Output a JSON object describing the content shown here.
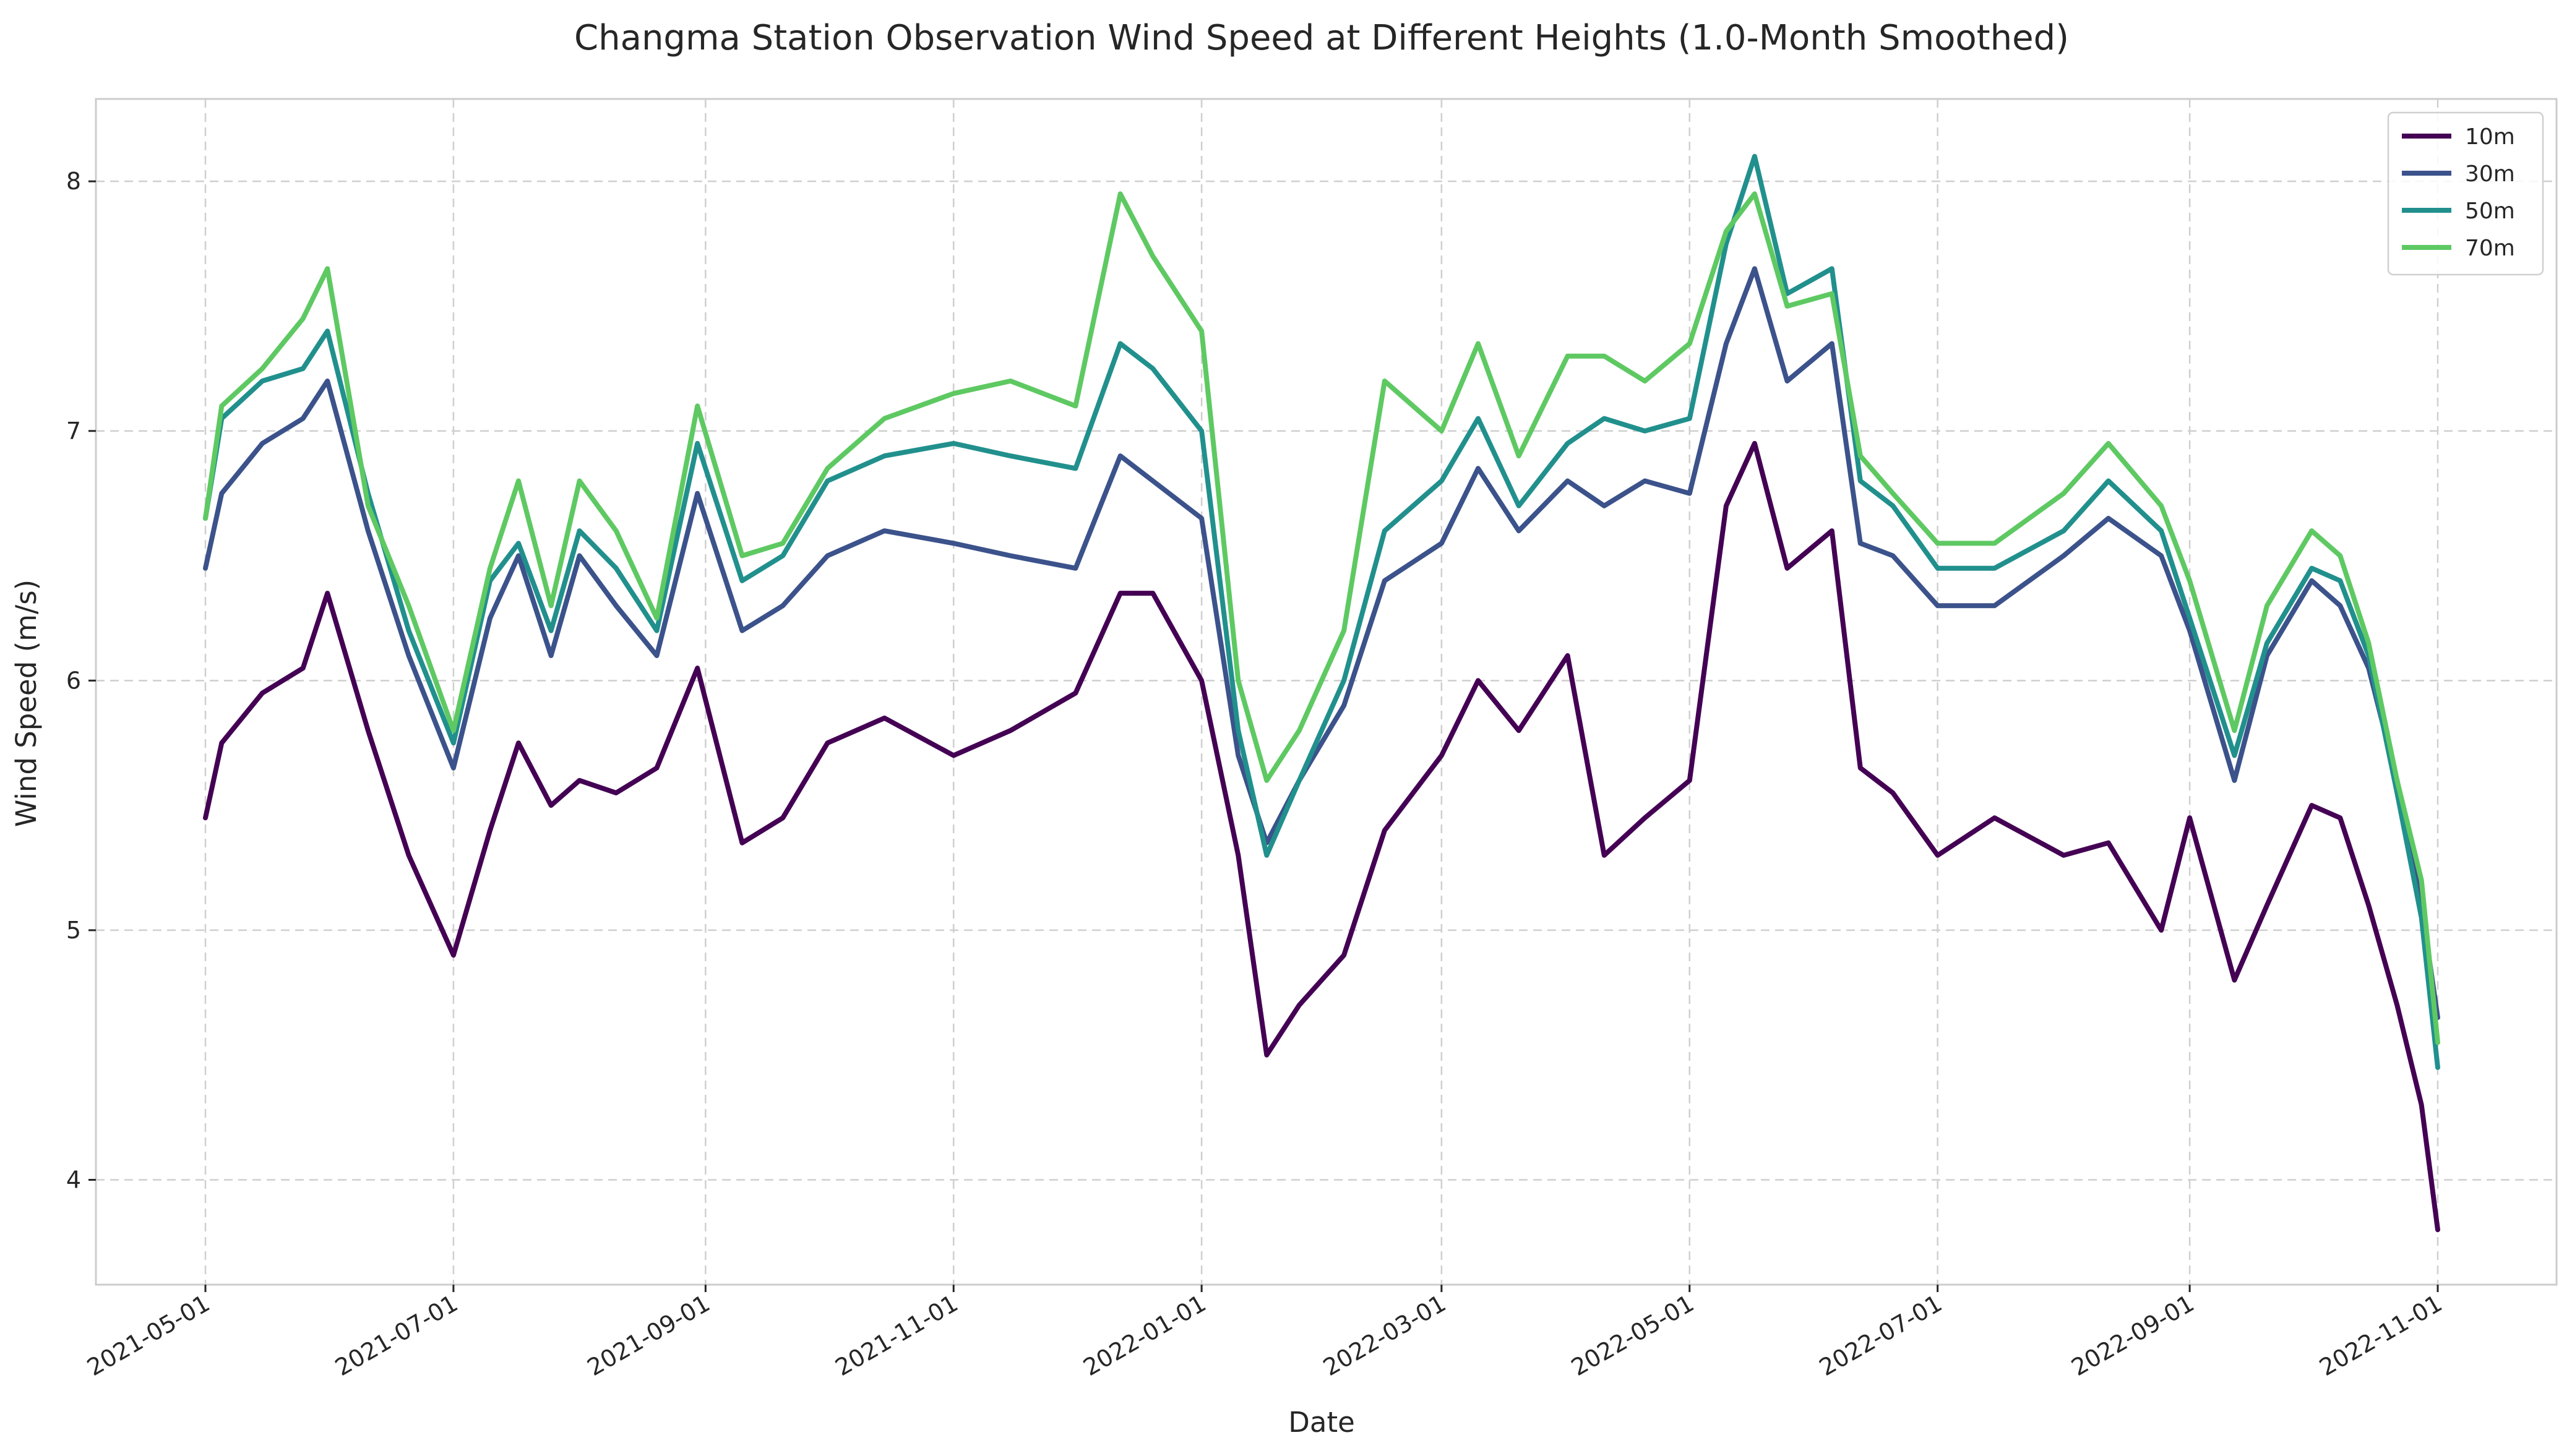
{
  "chart_data": {
    "type": "line",
    "title": "Changma Station Observation Wind Speed at Different Heights (1.0-Month Smoothed)",
    "xlabel": "Date",
    "ylabel": "Wind Speed (m/s)",
    "xlim": [
      "2021-05-01",
      "2022-11-01"
    ],
    "ylim": [
      3.58,
      8.33
    ],
    "y_ticks": [
      4,
      5,
      6,
      7,
      8
    ],
    "x_ticks": [
      "2021-05-01",
      "2021-07-01",
      "2021-09-01",
      "2021-11-01",
      "2022-01-01",
      "2022-03-01",
      "2022-05-01",
      "2022-07-01",
      "2022-09-01",
      "2022-11-01"
    ],
    "grid": true,
    "legend_position": "top-right",
    "x": [
      "2021-05-01",
      "2021-05-05",
      "2021-05-15",
      "2021-05-25",
      "2021-05-31",
      "2021-06-10",
      "2021-06-20",
      "2021-07-01",
      "2021-07-10",
      "2021-07-17",
      "2021-07-25",
      "2021-08-01",
      "2021-08-10",
      "2021-08-20",
      "2021-08-30",
      "2021-09-10",
      "2021-09-20",
      "2021-10-01",
      "2021-10-15",
      "2021-11-01",
      "2021-11-15",
      "2021-12-01",
      "2021-12-12",
      "2021-12-20",
      "2022-01-01",
      "2022-01-10",
      "2022-01-17",
      "2022-01-25",
      "2022-02-05",
      "2022-02-15",
      "2022-03-01",
      "2022-03-10",
      "2022-03-20",
      "2022-04-01",
      "2022-04-10",
      "2022-04-20",
      "2022-05-01",
      "2022-05-10",
      "2022-05-17",
      "2022-05-25",
      "2022-06-05",
      "2022-06-12",
      "2022-06-20",
      "2022-07-01",
      "2022-07-15",
      "2022-08-01",
      "2022-08-12",
      "2022-08-25",
      "2022-09-01",
      "2022-09-12",
      "2022-09-20",
      "2022-10-01",
      "2022-10-08",
      "2022-10-15",
      "2022-10-22",
      "2022-10-28",
      "2022-11-01"
    ],
    "series": [
      {
        "name": "10m",
        "color": "#440154",
        "values": [
          5.45,
          5.75,
          5.95,
          6.05,
          6.35,
          5.8,
          5.3,
          4.9,
          5.4,
          5.75,
          5.5,
          5.6,
          5.55,
          5.65,
          6.05,
          5.35,
          5.45,
          5.75,
          5.85,
          5.7,
          5.8,
          5.95,
          6.35,
          6.35,
          6.0,
          5.3,
          4.5,
          4.7,
          4.9,
          5.4,
          5.7,
          6.0,
          5.8,
          6.1,
          5.3,
          5.45,
          5.6,
          6.7,
          6.95,
          6.45,
          6.6,
          5.65,
          5.55,
          5.3,
          5.45,
          5.3,
          5.35,
          5.0,
          5.45,
          4.8,
          5.1,
          5.5,
          5.45,
          5.1,
          4.7,
          4.3,
          3.8
        ]
      },
      {
        "name": "30m",
        "color": "#3b528b",
        "values": [
          6.45,
          6.75,
          6.95,
          7.05,
          7.2,
          6.6,
          6.1,
          5.65,
          6.25,
          6.5,
          6.1,
          6.5,
          6.3,
          6.1,
          6.75,
          6.2,
          6.3,
          6.5,
          6.6,
          6.55,
          6.5,
          6.45,
          6.9,
          6.8,
          6.65,
          5.7,
          5.35,
          5.6,
          5.9,
          6.4,
          6.55,
          6.85,
          6.6,
          6.8,
          6.7,
          6.8,
          6.75,
          7.35,
          7.65,
          7.2,
          7.35,
          6.55,
          6.5,
          6.3,
          6.3,
          6.5,
          6.65,
          6.5,
          6.2,
          5.6,
          6.1,
          6.4,
          6.3,
          6.05,
          5.6,
          5.1,
          4.65
        ]
      },
      {
        "name": "50m",
        "color": "#21908d",
        "values": [
          6.65,
          7.05,
          7.2,
          7.25,
          7.4,
          6.75,
          6.2,
          5.75,
          6.4,
          6.55,
          6.2,
          6.6,
          6.45,
          6.2,
          6.95,
          6.4,
          6.5,
          6.8,
          6.9,
          6.95,
          6.9,
          6.85,
          7.35,
          7.25,
          7.0,
          5.8,
          5.3,
          5.6,
          6.0,
          6.6,
          6.8,
          7.05,
          6.7,
          6.95,
          7.05,
          7.0,
          7.05,
          7.75,
          8.1,
          7.55,
          7.65,
          6.8,
          6.7,
          6.45,
          6.45,
          6.6,
          6.8,
          6.6,
          6.25,
          5.7,
          6.15,
          6.45,
          6.4,
          6.1,
          5.55,
          5.05,
          4.45
        ]
      },
      {
        "name": "70m",
        "color": "#5ec962",
        "values": [
          6.65,
          7.1,
          7.25,
          7.45,
          7.65,
          6.7,
          6.3,
          5.8,
          6.45,
          6.8,
          6.3,
          6.8,
          6.6,
          6.25,
          7.1,
          6.5,
          6.55,
          6.85,
          7.05,
          7.15,
          7.2,
          7.1,
          7.95,
          7.7,
          7.4,
          6.0,
          5.6,
          5.8,
          6.2,
          7.2,
          7.0,
          7.35,
          6.9,
          7.3,
          7.3,
          7.2,
          7.35,
          7.8,
          7.95,
          7.5,
          7.55,
          6.9,
          6.75,
          6.55,
          6.55,
          6.75,
          6.95,
          6.7,
          6.4,
          5.8,
          6.3,
          6.6,
          6.5,
          6.15,
          5.6,
          5.2,
          4.55
        ]
      }
    ]
  }
}
